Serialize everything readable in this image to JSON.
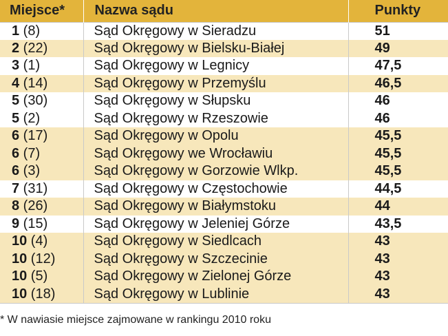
{
  "table": {
    "headers": {
      "place": "Miejsce*",
      "name": "Nazwa sądu",
      "points": "Punkty"
    },
    "rows": [
      {
        "rank": "1",
        "prev": " (8)",
        "name": "Sąd Okręgowy w Sieradzu",
        "points": "51"
      },
      {
        "rank": "2",
        "prev": " (22)",
        "name": "Sąd Okręgowy w Bielsku-Białej",
        "points": "49"
      },
      {
        "rank": "3",
        "prev": " (1)",
        "name": "Sąd Okręgowy w Legnicy",
        "points": "47,5"
      },
      {
        "rank": "4",
        "prev": " (14)",
        "name": "Sąd Okręgowy w Przemyślu",
        "points": "46,5"
      },
      {
        "rank": "5",
        "prev": " (30)",
        "name": "Sąd Okręgowy w Słupsku",
        "points": "46"
      },
      {
        "rank": "5",
        "prev": " (2)",
        "name": "Sąd Okręgowy w Rzeszowie",
        "points": "46"
      },
      {
        "rank": "6",
        "prev": " (17)",
        "name": "Sąd Okręgowy w Opolu",
        "points": "45,5"
      },
      {
        "rank": "6",
        "prev": " (7)",
        "name": "Sąd Okręgowy we Wrocławiu",
        "points": "45,5"
      },
      {
        "rank": "6",
        "prev": " (3)",
        "name": "Sąd Okręgowy w Gorzowie Wlkp.",
        "points": "45,5"
      },
      {
        "rank": "7",
        "prev": " (31)",
        "name": "Sąd Okręgowy w Częstochowie",
        "points": "44,5"
      },
      {
        "rank": "8",
        "prev": " (26)",
        "name": "Sąd Okręgowy w Białymstoku",
        "points": "44"
      },
      {
        "rank": "9",
        "prev": " (15)",
        "name": "Sąd Okręgowy w Jeleniej Górze",
        "points": "43,5"
      },
      {
        "rank": "10",
        "prev": " (4)",
        "name": "Sąd Okręgowy w Siedlcach",
        "points": "43"
      },
      {
        "rank": "10",
        "prev": " (12)",
        "name": "Sąd Okręgowy w Szczecinie",
        "points": "43"
      },
      {
        "rank": "10",
        "prev": " (5)",
        "name": "Sąd Okręgowy w Zielonej Górze",
        "points": "43"
      },
      {
        "rank": "10",
        "prev": " (18)",
        "name": "Sąd Okręgowy w Lublinie",
        "points": "43"
      }
    ]
  },
  "footnote": "* W nawiasie miejsce zajmowane w rankingu 2010 roku",
  "colors": {
    "header": "#e3b43b",
    "band_yellow": "#f7e7bb",
    "band_white": "#ffffff"
  }
}
